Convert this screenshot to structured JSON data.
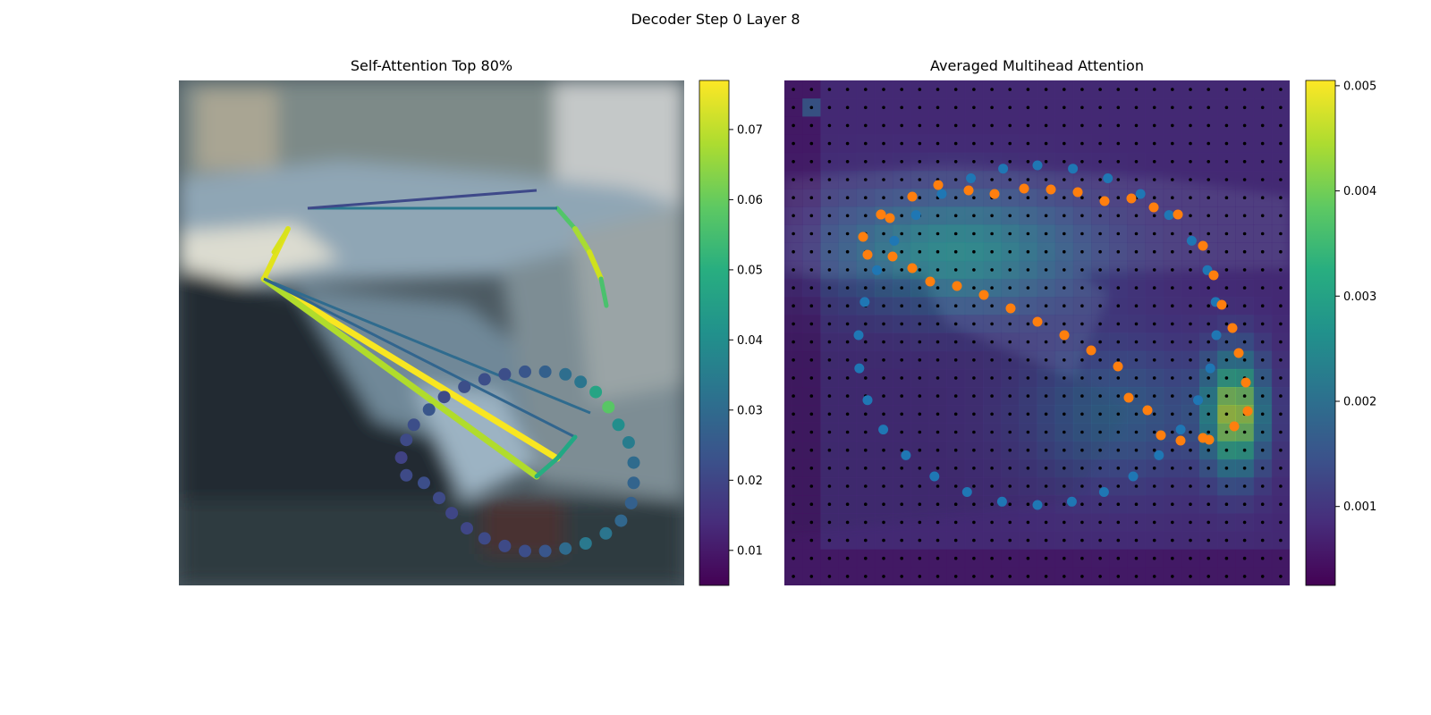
{
  "figure": {
    "suptitle": "Decoder Step 0 Layer 8"
  },
  "chart_data": [
    {
      "type": "scatter",
      "title": "Self-Attention Top 80%",
      "xlabel": "",
      "ylabel": "",
      "axes_visible": false,
      "colormap": "viridis",
      "colorbar": {
        "min": 0.005,
        "max": 0.077,
        "ticks": [
          0.01,
          0.02,
          0.03,
          0.04,
          0.05,
          0.06,
          0.07
        ],
        "tick_labels": [
          "0.01",
          "0.02",
          "0.03",
          "0.04",
          "0.05",
          "0.06",
          "0.07"
        ]
      },
      "background": "blurred photo of parked cars",
      "points_value_range": [
        0.01,
        0.07
      ],
      "points": [
        {
          "x": 9.5,
          "y": 3.3,
          "v": 0.021
        },
        {
          "x": 9.3,
          "y": 4.0,
          "v": 0.019
        },
        {
          "x": 9.5,
          "y": 4.7,
          "v": 0.021
        },
        {
          "x": 9.8,
          "y": 5.3,
          "v": 0.022
        },
        {
          "x": 10.4,
          "y": 5.9,
          "v": 0.024
        },
        {
          "x": 11.0,
          "y": 6.4,
          "v": 0.021
        },
        {
          "x": 11.8,
          "y": 6.8,
          "v": 0.022
        },
        {
          "x": 12.6,
          "y": 7.1,
          "v": 0.022
        },
        {
          "x": 13.4,
          "y": 7.3,
          "v": 0.022
        },
        {
          "x": 14.2,
          "y": 7.4,
          "v": 0.024
        },
        {
          "x": 15.0,
          "y": 7.4,
          "v": 0.027
        },
        {
          "x": 15.8,
          "y": 7.3,
          "v": 0.031
        },
        {
          "x": 16.4,
          "y": 7.0,
          "v": 0.033
        },
        {
          "x": 17.0,
          "y": 6.6,
          "v": 0.047
        },
        {
          "x": 17.5,
          "y": 6.0,
          "v": 0.058
        },
        {
          "x": 17.9,
          "y": 5.3,
          "v": 0.04
        },
        {
          "x": 18.3,
          "y": 4.6,
          "v": 0.035
        },
        {
          "x": 18.5,
          "y": 3.8,
          "v": 0.03
        },
        {
          "x": 18.5,
          "y": 3.0,
          "v": 0.028
        },
        {
          "x": 18.4,
          "y": 2.2,
          "v": 0.027
        },
        {
          "x": 18.0,
          "y": 1.5,
          "v": 0.029
        },
        {
          "x": 17.4,
          "y": 1.0,
          "v": 0.033
        },
        {
          "x": 16.6,
          "y": 0.6,
          "v": 0.034
        },
        {
          "x": 15.8,
          "y": 0.4,
          "v": 0.03
        },
        {
          "x": 15.0,
          "y": 0.3,
          "v": 0.024
        },
        {
          "x": 14.2,
          "y": 0.3,
          "v": 0.022
        },
        {
          "x": 13.4,
          "y": 0.5,
          "v": 0.021
        },
        {
          "x": 12.6,
          "y": 0.8,
          "v": 0.021
        },
        {
          "x": 11.9,
          "y": 1.2,
          "v": 0.02
        },
        {
          "x": 11.3,
          "y": 1.8,
          "v": 0.02
        },
        {
          "x": 10.8,
          "y": 2.4,
          "v": 0.021
        },
        {
          "x": 10.2,
          "y": 3.0,
          "v": 0.022
        }
      ],
      "edges": [
        {
          "from": "A",
          "to": "B",
          "v": 0.074
        },
        {
          "from": "A",
          "to": "C",
          "v": 0.068
        },
        {
          "from": "A",
          "to": "D",
          "v": 0.063
        },
        {
          "from": "D",
          "to": "E",
          "v": 0.064
        },
        {
          "from": "F",
          "to": "G",
          "v": 0.053
        },
        {
          "from": "G",
          "to": "H",
          "v": 0.056
        },
        {
          "from": "H",
          "to": "I",
          "v": 0.06
        },
        {
          "from": "I",
          "to": "J",
          "v": 0.055
        },
        {
          "from": "K",
          "to": "G",
          "v": 0.037
        },
        {
          "from": "A",
          "to": "L",
          "v": 0.032
        },
        {
          "from": "A",
          "to": "M",
          "v": 0.03
        },
        {
          "from": "C",
          "to": "B",
          "v": 0.045
        },
        {
          "from": "B",
          "to": "N",
          "v": 0.05
        },
        {
          "from": "K",
          "to": "O",
          "v": 0.028
        }
      ]
    },
    {
      "type": "heatmap",
      "title": "Averaged Multihead Attention",
      "xlabel": "",
      "ylabel": "",
      "axes_visible": false,
      "colormap": "viridis",
      "colorbar": {
        "min": 0.00025,
        "max": 0.00505,
        "ticks": [
          0.001,
          0.002,
          0.003,
          0.004,
          0.005
        ],
        "tick_labels": [
          "0.001",
          "0.002",
          "0.003",
          "0.004",
          "0.005"
        ]
      },
      "grid_size": [
        28,
        28
      ],
      "overlay_series": [
        {
          "color": "#1f77b4",
          "marker": "circle"
        },
        {
          "color": "#ff7f0e",
          "marker": "circle"
        },
        {
          "color": "#000000",
          "marker": "dot-grid"
        }
      ]
    }
  ]
}
